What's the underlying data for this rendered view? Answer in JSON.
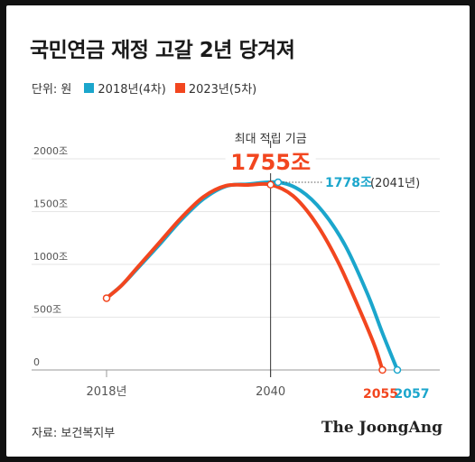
{
  "title": "국민연금 재정 고갈 2년 당겨져",
  "legend": {
    "unit": "단위: 원",
    "series1": "2018년(4차)",
    "series2": "2023년(5차)"
  },
  "colors": {
    "series1": "#1ba6cc",
    "series2": "#f2461f"
  },
  "source": "자료: 보건복지부",
  "brand": "The JoongAng",
  "chart_data": {
    "type": "line",
    "ylim": [
      0,
      2000
    ],
    "yticks": [
      "2000조",
      "1500조",
      "1000조",
      "500조",
      "0"
    ],
    "ytick_values": [
      2000,
      1500,
      1000,
      500,
      0
    ],
    "xticks": [
      "2018년",
      "2040"
    ],
    "xtick_values": [
      2018,
      2040
    ],
    "series": [
      {
        "name": "2018년(4차)",
        "x": [
          2018,
          2020,
          2022,
          2025,
          2028,
          2031,
          2034,
          2037,
          2041,
          2044,
          2047,
          2050,
          2053,
          2055,
          2057
        ],
        "values": [
          680,
          800,
          950,
          1180,
          1420,
          1620,
          1740,
          1760,
          1778,
          1700,
          1500,
          1180,
          720,
          350,
          0
        ]
      },
      {
        "name": "2023년(5차)",
        "x": [
          2018,
          2020,
          2022,
          2025,
          2028,
          2031,
          2034,
          2037,
          2040,
          2043,
          2046,
          2049,
          2052,
          2054,
          2055
        ],
        "values": [
          680,
          800,
          960,
          1200,
          1440,
          1640,
          1745,
          1752,
          1755,
          1650,
          1400,
          1030,
          560,
          220,
          0
        ]
      }
    ],
    "annotations": {
      "peak_label": "최대 적립 기금",
      "peak_value": "1755조",
      "peak_2018_value": "1778조",
      "peak_2018_year": "(2041년)",
      "end_2023": "2055",
      "end_2018": "2057"
    }
  }
}
